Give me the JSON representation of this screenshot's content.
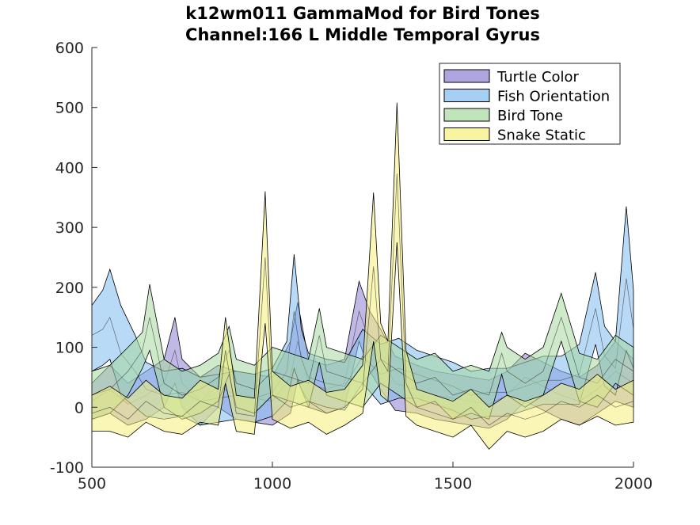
{
  "chart_data": {
    "type": "area",
    "title_lines": [
      "k12wm011 GammaMod for Bird Tones",
      "Channel:166 L Middle Temporal Gyrus"
    ],
    "xlabel": "",
    "ylabel": "",
    "xlim": [
      500,
      2000
    ],
    "ylim": [
      -100,
      600
    ],
    "xticks": [
      500,
      1000,
      1500,
      2000
    ],
    "yticks": [
      -100,
      0,
      100,
      200,
      300,
      400,
      500,
      600
    ],
    "grid": false,
    "legend_position": "top-right",
    "series": [
      {
        "name": "Turtle Color",
        "color": "#8c80d0",
        "x": [
          500,
          550,
          600,
          650,
          700,
          730,
          750,
          800,
          850,
          900,
          950,
          1000,
          1050,
          1070,
          1100,
          1150,
          1200,
          1240,
          1270,
          1300,
          1340,
          1400,
          1450,
          1500,
          1550,
          1600,
          1650,
          1700,
          1750,
          1800,
          1850,
          1900,
          1950,
          2000
        ],
        "mean": [
          10,
          30,
          5,
          20,
          40,
          95,
          40,
          10,
          35,
          20,
          15,
          10,
          50,
          110,
          40,
          30,
          40,
          160,
          110,
          80,
          40,
          30,
          20,
          15,
          10,
          5,
          20,
          50,
          35,
          20,
          10,
          30,
          60,
          40
        ],
        "upper": [
          40,
          70,
          40,
          60,
          80,
          150,
          80,
          50,
          70,
          60,
          55,
          50,
          110,
          175,
          80,
          70,
          80,
          210,
          160,
          130,
          85,
          70,
          60,
          55,
          50,
          45,
          60,
          90,
          75,
          60,
          50,
          70,
          110,
          80
        ],
        "lower": [
          -20,
          -10,
          -30,
          -20,
          0,
          40,
          0,
          -30,
          0,
          -20,
          -25,
          -30,
          -10,
          45,
          0,
          -10,
          0,
          110,
          60,
          30,
          -5,
          -10,
          -20,
          -25,
          -30,
          -35,
          -20,
          10,
          -5,
          -20,
          -30,
          -10,
          10,
          0
        ]
      },
      {
        "name": "Fish Orientation",
        "color": "#7fbcf0",
        "x": [
          500,
          530,
          550,
          580,
          620,
          650,
          700,
          750,
          800,
          850,
          900,
          950,
          1000,
          1040,
          1060,
          1080,
          1100,
          1150,
          1200,
          1250,
          1300,
          1350,
          1400,
          1450,
          1500,
          1550,
          1600,
          1650,
          1700,
          1750,
          1800,
          1850,
          1895,
          1920,
          1950,
          1980,
          2000
        ],
        "mean": [
          120,
          130,
          150,
          90,
          60,
          30,
          20,
          25,
          10,
          15,
          20,
          15,
          25,
          60,
          160,
          80,
          50,
          40,
          35,
          85,
          55,
          65,
          55,
          45,
          35,
          20,
          25,
          25,
          35,
          45,
          45,
          55,
          165,
          85,
          65,
          215,
          130
        ],
        "upper": [
          170,
          195,
          230,
          170,
          120,
          75,
          60,
          65,
          50,
          55,
          60,
          55,
          65,
          110,
          255,
          130,
          90,
          80,
          75,
          130,
          105,
          115,
          95,
          85,
          75,
          60,
          65,
          65,
          75,
          85,
          85,
          105,
          225,
          135,
          110,
          335,
          195
        ],
        "lower": [
          60,
          70,
          80,
          20,
          0,
          -15,
          -20,
          -15,
          -30,
          -25,
          -20,
          -25,
          -15,
          10,
          65,
          30,
          10,
          0,
          -5,
          40,
          5,
          15,
          15,
          5,
          -5,
          -20,
          -15,
          -15,
          -5,
          5,
          5,
          5,
          105,
          35,
          20,
          95,
          65
        ]
      },
      {
        "name": "Bird Tone",
        "color": "#a7d8a0",
        "x": [
          500,
          550,
          600,
          640,
          660,
          700,
          750,
          800,
          850,
          880,
          900,
          950,
          1000,
          1050,
          1100,
          1130,
          1150,
          1200,
          1250,
          1300,
          1350,
          1400,
          1450,
          1500,
          1550,
          1600,
          1635,
          1650,
          1700,
          1750,
          1800,
          1850,
          1900,
          1950,
          2000
        ],
        "mean": [
          20,
          30,
          60,
          95,
          150,
          40,
          20,
          30,
          50,
          95,
          40,
          30,
          60,
          50,
          40,
          120,
          60,
          50,
          40,
          80,
          60,
          40,
          50,
          20,
          30,
          20,
          90,
          60,
          40,
          60,
          150,
          50,
          40,
          80,
          60
        ],
        "upper": [
          60,
          70,
          100,
          125,
          205,
          80,
          60,
          70,
          90,
          135,
          80,
          70,
          100,
          90,
          80,
          165,
          100,
          90,
          80,
          120,
          100,
          80,
          90,
          60,
          70,
          60,
          125,
          100,
          80,
          100,
          190,
          90,
          80,
          120,
          100
        ],
        "lower": [
          -20,
          -10,
          20,
          65,
          95,
          0,
          -20,
          -10,
          10,
          55,
          0,
          -10,
          20,
          10,
          0,
          75,
          20,
          10,
          0,
          40,
          20,
          0,
          10,
          -20,
          -10,
          -20,
          55,
          20,
          0,
          20,
          110,
          10,
          0,
          40,
          20
        ]
      },
      {
        "name": "Snake Static",
        "color": "#f5f07a",
        "x": [
          500,
          550,
          600,
          650,
          700,
          750,
          800,
          850,
          870,
          900,
          950,
          980,
          1000,
          1050,
          1100,
          1150,
          1200,
          1250,
          1280,
          1300,
          1320,
          1345,
          1370,
          1400,
          1450,
          1500,
          1550,
          1600,
          1650,
          1700,
          1750,
          1800,
          1850,
          1900,
          1950,
          2000
        ],
        "mean": [
          -10,
          0,
          -20,
          10,
          -10,
          -15,
          10,
          0,
          95,
          -10,
          -15,
          250,
          20,
          0,
          10,
          -10,
          0,
          30,
          235,
          80,
          60,
          390,
          40,
          0,
          -10,
          -20,
          0,
          -30,
          -10,
          -20,
          -10,
          10,
          0,
          20,
          0,
          10
        ],
        "upper": [
          20,
          35,
          15,
          45,
          20,
          15,
          45,
          30,
          150,
          20,
          15,
          360,
          60,
          35,
          45,
          25,
          30,
          70,
          358,
          140,
          110,
          508,
          95,
          30,
          20,
          10,
          30,
          0,
          20,
          10,
          20,
          40,
          30,
          55,
          30,
          45
        ],
        "lower": [
          -40,
          -40,
          -50,
          -25,
          -40,
          -45,
          -25,
          -30,
          40,
          -40,
          -45,
          140,
          -20,
          -35,
          -25,
          -45,
          -30,
          -10,
          110,
          20,
          10,
          275,
          -15,
          -30,
          -40,
          -50,
          -30,
          -70,
          -40,
          -50,
          -40,
          -20,
          -30,
          -15,
          -30,
          -25
        ]
      }
    ]
  }
}
